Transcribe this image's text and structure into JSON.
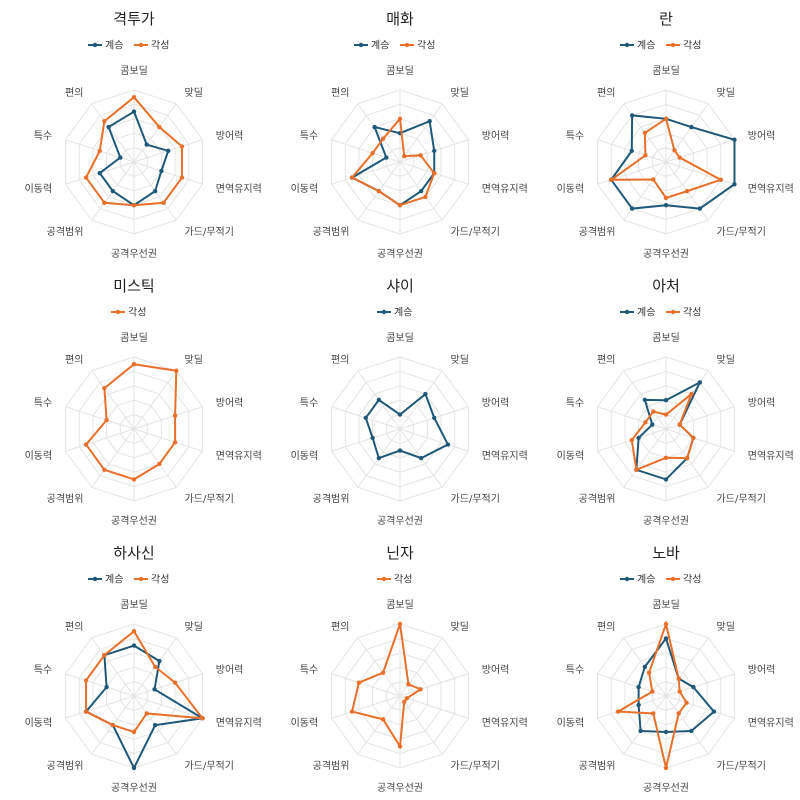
{
  "colors": {
    "계승": "#1f5878",
    "각성": "#e8702a",
    "grid": "#e4e4e4"
  },
  "chart_data": [
    {
      "type": "radar",
      "title": "격투가",
      "axes": [
        "콤보딜",
        "맞딜",
        "방어력",
        "면역유지력",
        "가드/무적기",
        "공격우선권",
        "공격범위",
        "이동력",
        "특수",
        "편의"
      ],
      "rmax": 10,
      "legend": "top-center",
      "series": [
        {
          "name": "계승",
          "values": [
            7,
            3,
            5,
            4,
            5,
            6,
            5,
            5,
            2,
            6
          ]
        },
        {
          "name": "각성",
          "values": [
            9,
            6,
            7,
            7,
            7,
            6,
            7,
            7,
            5,
            7
          ]
        }
      ]
    },
    {
      "type": "radar",
      "title": "매화",
      "axes": [
        "콤보딜",
        "맞딜",
        "방어력",
        "면역유지력",
        "가드/무적기",
        "공격우선권",
        "공격범위",
        "이동력",
        "특수",
        "편의"
      ],
      "rmax": 10,
      "legend": "top-center",
      "series": [
        {
          "name": "계승",
          "values": [
            4,
            7,
            5,
            5,
            5,
            6,
            5,
            7,
            2,
            6
          ]
        },
        {
          "name": "각성",
          "values": [
            6,
            1,
            3,
            5,
            6,
            6,
            5,
            7,
            4,
            4
          ]
        }
      ]
    },
    {
      "type": "radar",
      "title": "란",
      "axes": [
        "콤보딜",
        "맞딜",
        "방어력",
        "면역유지력",
        "가드/무적기",
        "공격우선권",
        "공격범위",
        "이동력",
        "특수",
        "편의"
      ],
      "rmax": 10,
      "legend": "top-center",
      "series": [
        {
          "name": "계승",
          "values": [
            6,
            6,
            10,
            10,
            8,
            6,
            8,
            8,
            5,
            8
          ]
        },
        {
          "name": "각성",
          "values": [
            6,
            2,
            2,
            8,
            5,
            5,
            3,
            8,
            3,
            5
          ]
        }
      ]
    },
    {
      "type": "radar",
      "title": "미스틱",
      "axes": [
        "콤보딜",
        "맞딜",
        "방어력",
        "면역유지력",
        "가드/무적기",
        "공격우선권",
        "공격범위",
        "이동력",
        "특수",
        "편의"
      ],
      "rmax": 10,
      "legend": "top-center",
      "series": [
        {
          "name": "각성",
          "values": [
            9,
            10,
            6,
            6,
            6,
            7,
            7,
            7,
            4,
            7
          ]
        }
      ]
    },
    {
      "type": "radar",
      "title": "샤이",
      "axes": [
        "콤보딜",
        "맞딜",
        "방어력",
        "면역유지력",
        "가드/무적기",
        "공격우선권",
        "공격범위",
        "이동력",
        "특수",
        "편의"
      ],
      "rmax": 10,
      "legend": "top-center",
      "series": [
        {
          "name": "계승",
          "values": [
            2,
            6,
            5,
            7,
            5,
            3,
            5,
            4,
            5,
            5
          ]
        }
      ]
    },
    {
      "type": "radar",
      "title": "아처",
      "axes": [
        "콤보딜",
        "맞딜",
        "방어력",
        "면역유지력",
        "가드/무적기",
        "공격우선권",
        "공격범위",
        "이동력",
        "특수",
        "편의"
      ],
      "rmax": 10,
      "legend": "top-center",
      "series": [
        {
          "name": "계승",
          "values": [
            4,
            8,
            2,
            4,
            5,
            7,
            7,
            4,
            2,
            5
          ]
        },
        {
          "name": "각성",
          "values": [
            2,
            6,
            2,
            4,
            5,
            4,
            7,
            5,
            3,
            3
          ]
        }
      ]
    },
    {
      "type": "radar",
      "title": "하사신",
      "axes": [
        "콤보딜",
        "맞딜",
        "방어력",
        "면역유지력",
        "가드/무적기",
        "공격우선권",
        "공격범위",
        "이동력",
        "특수",
        "편의"
      ],
      "rmax": 10,
      "legend": "top-center",
      "series": [
        {
          "name": "계승",
          "values": [
            7,
            6,
            3,
            10,
            5,
            10,
            5,
            7,
            4,
            7
          ]
        },
        {
          "name": "각성",
          "values": [
            9,
            5,
            6,
            10,
            3,
            5,
            5,
            7,
            7,
            7
          ]
        }
      ]
    },
    {
      "type": "radar",
      "title": "닌자",
      "axes": [
        "콤보딜",
        "맞딜",
        "방어력",
        "면역유지력",
        "가드/무적기",
        "공격우선권",
        "공격범위",
        "이동력",
        "특수",
        "편의"
      ],
      "rmax": 10,
      "legend": "top-center",
      "series": [
        {
          "name": "각성",
          "values": [
            10,
            2,
            3,
            1,
            1,
            7,
            4,
            7,
            6,
            4
          ]
        }
      ]
    },
    {
      "type": "radar",
      "title": "노바",
      "axes": [
        "콤보딜",
        "맞딜",
        "방어력",
        "면역유지력",
        "가드/무적기",
        "공격우선권",
        "공격범위",
        "이동력",
        "특수",
        "편의"
      ],
      "rmax": 10,
      "legend": "top-center",
      "series": [
        {
          "name": "계승",
          "values": [
            8,
            3,
            4,
            7,
            6,
            5,
            6,
            4,
            4,
            5
          ]
        },
        {
          "name": "각성",
          "values": [
            10,
            3,
            2,
            3,
            3,
            10,
            3,
            7,
            2,
            4
          ]
        }
      ]
    }
  ]
}
